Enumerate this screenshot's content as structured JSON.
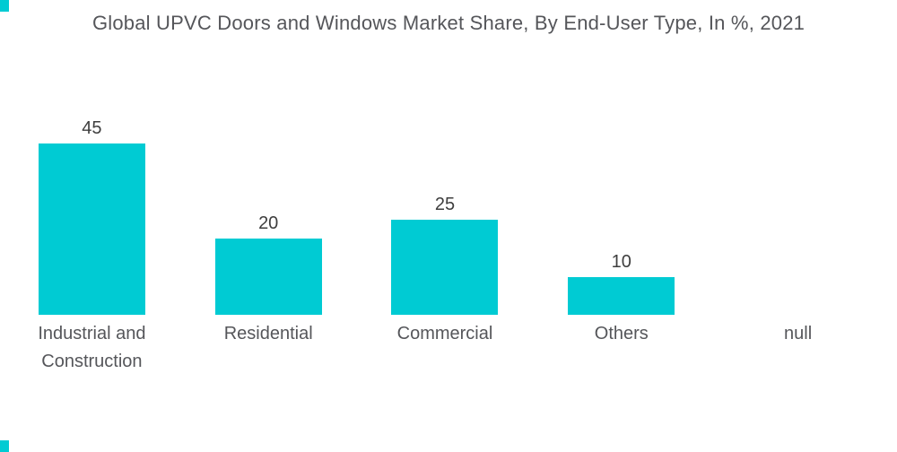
{
  "colors": {
    "bar": "#00CBD3",
    "corner_accent": "#00CBD3",
    "title_text": "#55565A",
    "value_text": "#3E3E3E",
    "category_text": "#55565A"
  },
  "chart_data": {
    "type": "bar",
    "title": "Global UPVC Doors and Windows Market Share, By End-User Type, In %, 2021",
    "categories": [
      "Industrial and Construction",
      "Residential",
      "Commercial",
      "Others",
      "null"
    ],
    "values": [
      45,
      20,
      25,
      10,
      null
    ],
    "xlabel": "",
    "ylabel": "",
    "ylim": [
      0,
      50
    ],
    "unit": "%",
    "grid": false,
    "legend": false,
    "axes_shown": false,
    "value_labels_shown": true,
    "legend_position": "none"
  }
}
